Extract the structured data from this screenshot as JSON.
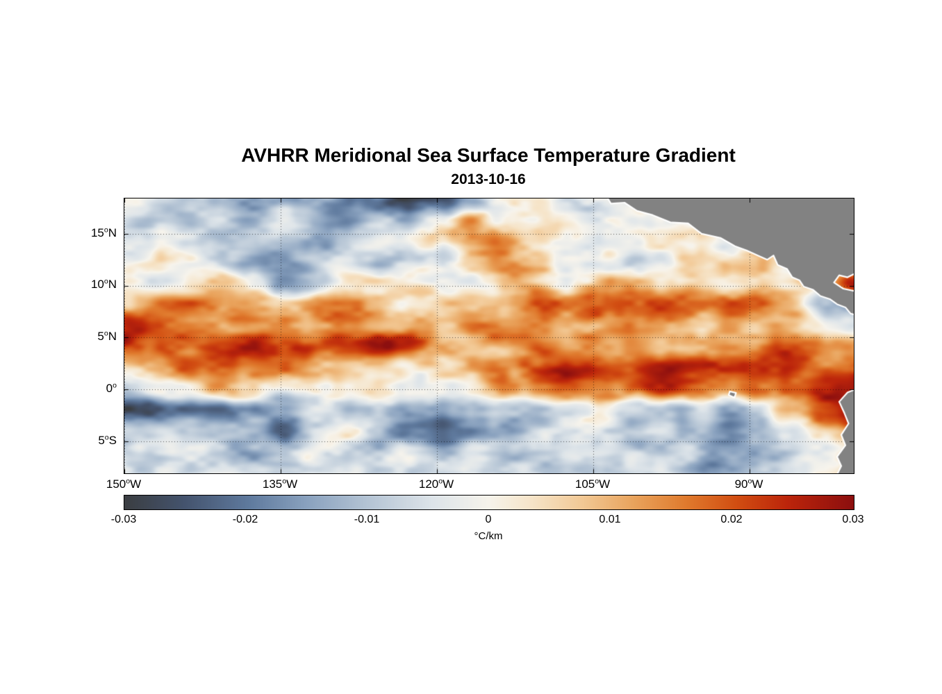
{
  "figure": {
    "title": "AVHRR Meridional Sea Surface Temperature Gradient",
    "subtitle": "2013-10-16"
  },
  "axes": {
    "x_ticks": [
      {
        "num": "150",
        "deg": "o",
        "hem": "W",
        "lon": -150
      },
      {
        "num": "135",
        "deg": "o",
        "hem": "W",
        "lon": -135
      },
      {
        "num": "120",
        "deg": "o",
        "hem": "W",
        "lon": -120
      },
      {
        "num": "105",
        "deg": "o",
        "hem": "W",
        "lon": -105
      },
      {
        "num": "90",
        "deg": "o",
        "hem": "W",
        "lon": -90
      }
    ],
    "y_ticks": [
      {
        "num": "15",
        "deg": "o",
        "hem": "N",
        "lat": 15
      },
      {
        "num": "10",
        "deg": "o",
        "hem": "N",
        "lat": 10
      },
      {
        "num": "5",
        "deg": "o",
        "hem": "N",
        "lat": 5
      },
      {
        "num": "0",
        "deg": "o",
        "hem": "",
        "lat": 0
      },
      {
        "num": "5",
        "deg": "o",
        "hem": "S",
        "lat": -5
      }
    ]
  },
  "colorbar": {
    "ticks": [
      "-0.03",
      "-0.02",
      "-0.01",
      "0",
      "0.01",
      "0.02",
      "0.03"
    ],
    "unit": "°C/km",
    "min": -0.03,
    "max": 0.03
  },
  "chart_data": {
    "type": "heatmap",
    "title": "AVHRR Meridional Sea Surface Temperature Gradient",
    "date": "2013-10-16",
    "units": "°C/km",
    "clim": [
      -0.03,
      0.03
    ],
    "lon_range": [
      -150,
      -80
    ],
    "lat_range": [
      -8.1,
      18.4
    ],
    "grid_lons": [
      -150,
      -147,
      -143.9,
      -140.9,
      -137.8,
      -134.8,
      -131.7,
      -128.7,
      -125.7,
      -122.6,
      -119.6,
      -116.5,
      -113.5,
      -110.4,
      -107.4,
      -104.3,
      -101.3,
      -98.3,
      -95.2,
      -92.2,
      -89.1,
      -86.1,
      -83,
      -80
    ],
    "grid_lats": [
      18.4,
      16.4,
      14.3,
      12.3,
      10.2,
      8.2,
      6.2,
      4.1,
      2.1,
      0.0,
      -2.0,
      -4.0,
      -6.1,
      -8.1
    ],
    "values": [
      [
        -0.006,
        -0.01,
        -0.008,
        -0.016,
        -0.02,
        -0.014,
        -0.018,
        -0.022,
        -0.02,
        -0.024,
        -0.022,
        -0.01,
        0.006,
        0.004,
        -0.003,
        0.0,
        0.0,
        0.0,
        0.0,
        0.0,
        0.0,
        0.0,
        0.0,
        0.0
      ],
      [
        -0.004,
        -0.008,
        -0.012,
        -0.006,
        -0.014,
        -0.008,
        -0.012,
        -0.016,
        -0.01,
        -0.018,
        -0.008,
        0.012,
        0.006,
        -0.002,
        -0.006,
        -0.002,
        0.0,
        0.0,
        0.0,
        0.0,
        0.0,
        0.0,
        0.0,
        0.0
      ],
      [
        -0.002,
        -0.006,
        -0.01,
        -0.014,
        -0.008,
        -0.012,
        -0.016,
        -0.01,
        -0.006,
        -0.002,
        0.004,
        0.016,
        0.018,
        0.006,
        -0.002,
        -0.006,
        -0.002,
        0.002,
        0.004,
        0.0,
        0.0,
        0.0,
        0.0,
        0.0
      ],
      [
        -0.004,
        0.002,
        -0.004,
        -0.01,
        -0.014,
        -0.016,
        -0.01,
        -0.006,
        -0.012,
        -0.004,
        0.002,
        0.008,
        0.012,
        0.01,
        0.002,
        -0.004,
        -0.01,
        -0.006,
        0.006,
        0.01,
        0.008,
        0.0,
        0.0,
        0.0
      ],
      [
        0.002,
        -0.004,
        0.004,
        0.006,
        -0.004,
        -0.01,
        -0.012,
        -0.006,
        0.002,
        0.006,
        0.002,
        -0.002,
        0.008,
        0.012,
        0.006,
        0.01,
        0.012,
        0.008,
        0.012,
        0.006,
        0.01,
        0.004,
        0.008,
        0.026
      ],
      [
        0.008,
        0.012,
        0.016,
        0.008,
        0.01,
        0.006,
        0.012,
        0.008,
        0.014,
        0.006,
        0.002,
        0.006,
        0.01,
        0.014,
        0.01,
        0.016,
        0.018,
        0.014,
        0.018,
        0.02,
        0.016,
        0.012,
        -0.006,
        -0.012
      ],
      [
        0.02,
        0.016,
        0.01,
        0.014,
        0.018,
        0.012,
        0.008,
        0.012,
        0.008,
        0.012,
        0.006,
        0.01,
        0.006,
        0.01,
        0.012,
        0.008,
        0.012,
        0.01,
        0.008,
        0.012,
        0.01,
        0.008,
        0.004,
        -0.004
      ],
      [
        0.026,
        0.018,
        0.012,
        0.02,
        0.024,
        0.016,
        0.02,
        0.026,
        0.028,
        0.024,
        0.016,
        0.01,
        0.012,
        0.016,
        0.01,
        0.012,
        0.016,
        0.01,
        0.014,
        0.018,
        0.012,
        0.016,
        0.02,
        0.014
      ],
      [
        0.006,
        0.01,
        0.016,
        0.02,
        0.012,
        0.016,
        0.01,
        0.014,
        0.01,
        0.006,
        0.012,
        0.016,
        0.012,
        0.018,
        0.022,
        0.026,
        0.024,
        0.03,
        0.026,
        0.028,
        0.022,
        0.026,
        0.018,
        0.022
      ],
      [
        -0.002,
        0.004,
        0.002,
        0.008,
        0.004,
        -0.004,
        0.004,
        0.01,
        0.006,
        0.002,
        0.008,
        0.004,
        0.01,
        0.006,
        0.012,
        0.018,
        0.014,
        0.02,
        0.016,
        0.012,
        0.018,
        0.024,
        0.028,
        0.03
      ],
      [
        -0.024,
        -0.028,
        -0.022,
        -0.026,
        -0.016,
        -0.01,
        -0.006,
        -0.012,
        -0.008,
        -0.014,
        -0.02,
        -0.012,
        -0.006,
        -0.01,
        -0.004,
        0.004,
        -0.006,
        -0.01,
        -0.006,
        -0.016,
        -0.012,
        0.006,
        0.02,
        0.026
      ],
      [
        -0.008,
        -0.012,
        -0.016,
        -0.01,
        -0.014,
        -0.018,
        -0.01,
        -0.006,
        -0.012,
        -0.018,
        -0.022,
        -0.014,
        -0.018,
        -0.008,
        -0.004,
        -0.008,
        -0.012,
        -0.006,
        -0.01,
        -0.018,
        -0.014,
        -0.006,
        0.012,
        0.02
      ],
      [
        -0.004,
        -0.008,
        -0.004,
        -0.01,
        -0.014,
        -0.008,
        -0.004,
        -0.008,
        -0.012,
        -0.006,
        -0.01,
        -0.006,
        -0.012,
        -0.008,
        -0.004,
        -0.006,
        -0.01,
        -0.014,
        -0.008,
        -0.012,
        -0.016,
        -0.01,
        0.002,
        0.008
      ],
      [
        -0.002,
        -0.006,
        -0.008,
        -0.004,
        -0.008,
        -0.01,
        -0.006,
        -0.004,
        -0.008,
        -0.01,
        -0.004,
        -0.008,
        -0.01,
        -0.006,
        -0.008,
        -0.01,
        -0.012,
        -0.008,
        -0.01,
        -0.012,
        -0.008,
        -0.004,
        0.002,
        0.006
      ]
    ],
    "colormap": [
      {
        "t": 0.0,
        "c": "#3b3e42"
      },
      {
        "t": 0.08,
        "c": "#44536d"
      },
      {
        "t": 0.17,
        "c": "#5f7a9e"
      },
      {
        "t": 0.25,
        "c": "#8aa2bf"
      },
      {
        "t": 0.33,
        "c": "#b3c3d4"
      },
      {
        "t": 0.42,
        "c": "#dde4e9"
      },
      {
        "t": 0.5,
        "c": "#f7f4ec"
      },
      {
        "t": 0.56,
        "c": "#f6e4c8"
      },
      {
        "t": 0.63,
        "c": "#f2c894"
      },
      {
        "t": 0.7,
        "c": "#e9a35c"
      },
      {
        "t": 0.77,
        "c": "#e07b2e"
      },
      {
        "t": 0.84,
        "c": "#d24e12"
      },
      {
        "t": 0.91,
        "c": "#bc250b"
      },
      {
        "t": 1.0,
        "c": "#8c0f0f"
      }
    ],
    "land_color": "#828282",
    "coast_color": "#ffffff",
    "land": [
      {
        "name": "central-america",
        "points": [
          [
            -103.9,
            18.9
          ],
          [
            -103.3,
            17.9
          ],
          [
            -102.0,
            18.0
          ],
          [
            -100.8,
            17.2
          ],
          [
            -99.3,
            16.8
          ],
          [
            -97.6,
            16.1
          ],
          [
            -95.9,
            16.0
          ],
          [
            -94.6,
            15.0
          ],
          [
            -92.8,
            14.6
          ],
          [
            -91.4,
            13.8
          ],
          [
            -90.3,
            13.4
          ],
          [
            -89.2,
            12.9
          ],
          [
            -88.3,
            12.5
          ],
          [
            -87.7,
            12.9
          ],
          [
            -87.3,
            12.0
          ],
          [
            -86.4,
            11.6
          ],
          [
            -85.9,
            10.8
          ],
          [
            -85.2,
            10.5
          ],
          [
            -84.8,
            9.9
          ],
          [
            -83.9,
            9.6
          ],
          [
            -83.2,
            9.0
          ],
          [
            -82.3,
            8.7
          ],
          [
            -81.6,
            8.2
          ],
          [
            -80.8,
            7.9
          ],
          [
            -80.3,
            7.3
          ],
          [
            -79.6,
            7.1
          ],
          [
            -79.6,
            9.4
          ],
          [
            -81.0,
            9.7
          ],
          [
            -81.9,
            10.3
          ],
          [
            -81.4,
            11.0
          ],
          [
            -80.6,
            10.8
          ],
          [
            -79.6,
            11.3
          ],
          [
            -79.6,
            18.9
          ]
        ]
      },
      {
        "name": "south-america",
        "points": [
          [
            -79.6,
            0.1
          ],
          [
            -80.6,
            -0.3
          ],
          [
            -81.4,
            -1.2
          ],
          [
            -80.9,
            -2.3
          ],
          [
            -80.5,
            -3.3
          ],
          [
            -81.2,
            -4.4
          ],
          [
            -80.8,
            -5.4
          ],
          [
            -81.6,
            -6.5
          ],
          [
            -81.2,
            -7.4
          ],
          [
            -81.8,
            -8.6
          ],
          [
            -79.6,
            -8.6
          ]
        ]
      },
      {
        "name": "galapagos",
        "points": [
          [
            -91.9,
            -0.2
          ],
          [
            -91.3,
            -0.35
          ],
          [
            -91.45,
            -0.8
          ],
          [
            -92.0,
            -0.55
          ]
        ]
      }
    ],
    "noise": {
      "seed": 7,
      "octaves": [
        {
          "wx": 78,
          "wy": 38,
          "amp": 0.007
        },
        {
          "wx": 34,
          "wy": 17,
          "amp": 0.0045
        },
        {
          "wx": 15,
          "wy": 8,
          "amp": 0.0022
        }
      ]
    }
  }
}
